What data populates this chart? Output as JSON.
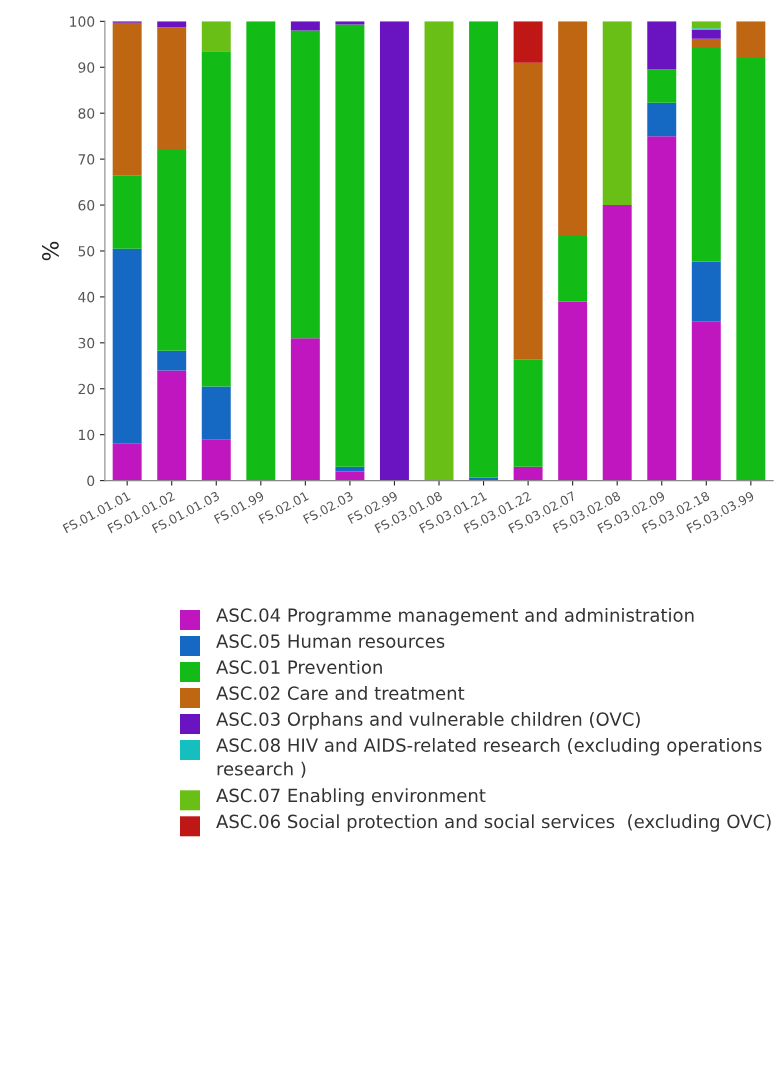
{
  "chart_data": {
    "type": "bar",
    "stacked": true,
    "ylabel": "%",
    "categories": [
      "FS.01.01.01",
      "FS.01.01.02",
      "FS.01.01.03",
      "FS.01.99",
      "FS.02.01",
      "FS.02.03",
      "FS.02.99",
      "FS.03.01.08",
      "FS.03.01.21",
      "FS.03.01.22",
      "FS.03.02.07",
      "FS.03.02.08",
      "FS.03.02.09",
      "FS.03.02.18",
      "FS.03.03.99"
    ],
    "ylim": [
      0,
      100
    ],
    "yticks": [
      0,
      10,
      20,
      30,
      40,
      50,
      60,
      70,
      80,
      90,
      100
    ],
    "grid": false,
    "legend": "bottom",
    "series": [
      {
        "name": "ASC.04 Programme management and administration",
        "color": "#c016bf",
        "values": [
          8,
          24,
          9,
          0,
          31,
          2,
          0,
          0,
          0,
          3,
          39,
          60,
          75,
          34.7,
          0
        ]
      },
      {
        "name": "ASC.05 Human resources",
        "color": "#1669c2",
        "values": [
          42.5,
          4.3,
          11.5,
          0,
          0,
          1,
          0,
          0,
          0.7,
          0,
          0,
          0,
          7.3,
          13,
          0
        ]
      },
      {
        "name": "ASC.01 Prevention",
        "color": "#13bb16",
        "values": [
          16,
          43.7,
          73,
          100,
          67,
          96.3,
          0,
          0,
          99.3,
          23.3,
          14.5,
          0,
          7.2,
          46.5,
          92
        ]
      },
      {
        "name": "ASC.02 Care and treatment",
        "color": "#bf6612",
        "values": [
          33.2,
          26.7,
          0,
          0,
          0,
          0,
          0,
          0,
          0,
          64.7,
          46.5,
          0,
          0,
          2,
          8
        ]
      },
      {
        "name": "ASC.03 Orphans and vulnerable children (OVC)",
        "color": "#6a13c0",
        "values": [
          0.3,
          1.3,
          0,
          0,
          2,
          0.7,
          100,
          0,
          0,
          0,
          0,
          0,
          10.5,
          2,
          0
        ]
      },
      {
        "name": "ASC.08 HIV and AIDS-related research (excluding operations research )",
        "color": "#16bfbf",
        "values": [
          0,
          0,
          0,
          0,
          0,
          0,
          0,
          0,
          0,
          0,
          0,
          0,
          0,
          0.3,
          0
        ]
      },
      {
        "name": "ASC.07 Enabling environment",
        "color": "#6abf16",
        "values": [
          0,
          0,
          6.5,
          0,
          0,
          0,
          0,
          100,
          0,
          0,
          0,
          40,
          0,
          1.5,
          0
        ]
      },
      {
        "name": "ASC.06 Social protection and social services  (excluding OVC)",
        "color": "#bf1616",
        "values": [
          0,
          0,
          0,
          0,
          0,
          0,
          0,
          0,
          0,
          9,
          0,
          0,
          0,
          0,
          0
        ]
      }
    ]
  }
}
